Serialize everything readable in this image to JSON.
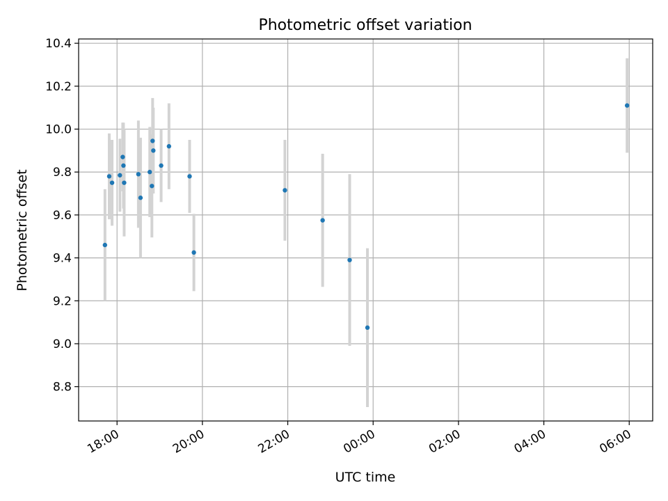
{
  "chart_data": {
    "type": "scatter",
    "title": "Photometric offset variation",
    "xlabel": "UTC time",
    "ylabel": "Photometric offset",
    "grid": true,
    "legend": "none",
    "point_color": "#1f77b4",
    "errorbar_color": "#d3d3d3",
    "x_ticks": [
      "18:00",
      "20:00",
      "22:00",
      "00:00",
      "02:00",
      "04:00",
      "06:00"
    ],
    "y_ticks": [
      "8.8",
      "9.0",
      "9.2",
      "9.4",
      "9.6",
      "9.8",
      "10.0",
      "10.2",
      "10.4"
    ],
    "xlim": [
      "17:06",
      "06:33"
    ],
    "ylim": [
      8.64,
      10.42
    ],
    "points": [
      {
        "time": "17:43",
        "y": 9.46,
        "err": 0.26
      },
      {
        "time": "17:49",
        "y": 9.78,
        "err": 0.2
      },
      {
        "time": "17:53",
        "y": 9.75,
        "err": 0.2
      },
      {
        "time": "18:04",
        "y": 9.785,
        "err": 0.17
      },
      {
        "time": "18:08",
        "y": 9.87,
        "err": 0.16
      },
      {
        "time": "18:09",
        "y": 9.83,
        "err": 0.2
      },
      {
        "time": "18:10",
        "y": 9.75,
        "err": 0.25
      },
      {
        "time": "18:30",
        "y": 9.79,
        "err": 0.25
      },
      {
        "time": "18:33",
        "y": 9.68,
        "err": 0.28
      },
      {
        "time": "18:46",
        "y": 9.8,
        "err": 0.21
      },
      {
        "time": "18:49",
        "y": 9.735,
        "err": 0.24
      },
      {
        "time": "18:50",
        "y": 9.945,
        "err": 0.2
      },
      {
        "time": "18:51",
        "y": 9.9,
        "err": 0.2
      },
      {
        "time": "19:02",
        "y": 9.83,
        "err": 0.17
      },
      {
        "time": "19:13",
        "y": 9.92,
        "err": 0.2
      },
      {
        "time": "19:42",
        "y": 9.78,
        "err": 0.17
      },
      {
        "time": "19:48",
        "y": 9.425,
        "err": 0.18
      },
      {
        "time": "21:56",
        "y": 9.715,
        "err": 0.235
      },
      {
        "time": "22:49",
        "y": 9.575,
        "err": 0.31
      },
      {
        "time": "23:27",
        "y": 9.39,
        "err": 0.4
      },
      {
        "time": "23:52",
        "y": 9.075,
        "err": 0.37
      },
      {
        "time": "05:57",
        "y": 10.11,
        "err": 0.22
      }
    ]
  }
}
